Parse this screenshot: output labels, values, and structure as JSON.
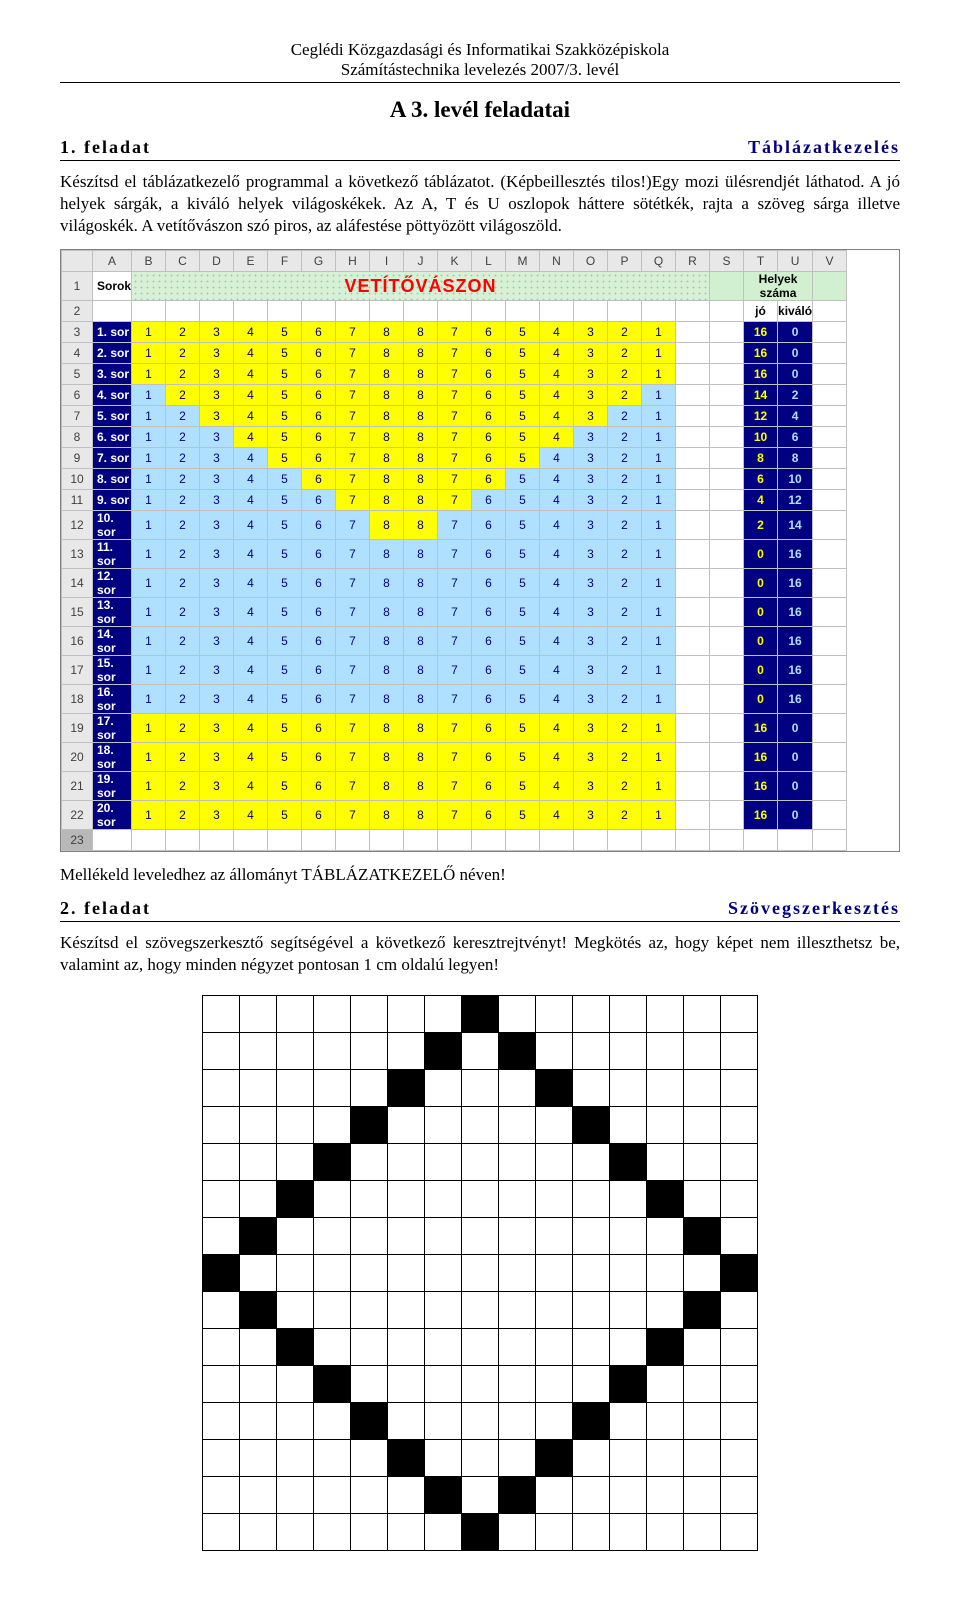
{
  "header": {
    "l1": "Ceglédi Közgazdasági és Informatikai Szakközépiskola",
    "l2": "Számítástechnika levelezés 2007/3. levél"
  },
  "title": "A 3. levél feladatai",
  "task1": {
    "left": "1. feladat",
    "right": "Táblázatkezelés"
  },
  "para1": "Készítsd el táblázatkezelő programmal a következő táblázatot. (Képbeillesztés tilos!)Egy mozi ülésrendjét láthatod. A jó helyek sárgák, a kiváló helyek világoskékek. Az A, T és U oszlopok háttere sötétkék, rajta a szöveg sárga illetve világoskék. A vetítővászon szó piros, az aláfestése pöttyözött világoszöld.",
  "sheet": {
    "cols": [
      "A",
      "B",
      "C",
      "D",
      "E",
      "F",
      "G",
      "H",
      "I",
      "J",
      "K",
      "L",
      "M",
      "N",
      "O",
      "P",
      "Q",
      "R",
      "S",
      "T",
      "U",
      "V"
    ],
    "row1": {
      "a": "Sorok",
      "banner": "VETÍTŐVÁSZON",
      "t": "Helyek száma"
    },
    "row2": {
      "t": "jó",
      "u": "kiváló"
    },
    "seq": [
      "1",
      "2",
      "3",
      "4",
      "5",
      "6",
      "7",
      "8",
      "8",
      "7",
      "6",
      "5",
      "4",
      "3",
      "2",
      "1"
    ],
    "rows": [
      {
        "n": 3,
        "lab": "1. sor",
        "blue": 16,
        "jo": "16",
        "ki": "0"
      },
      {
        "n": 4,
        "lab": "2. sor",
        "blue": 16,
        "jo": "16",
        "ki": "0"
      },
      {
        "n": 5,
        "lab": "3. sor",
        "blue": 16,
        "jo": "16",
        "ki": "0"
      },
      {
        "n": 6,
        "lab": "4. sor",
        "blue": 14,
        "jo": "14",
        "ki": "2"
      },
      {
        "n": 7,
        "lab": "5. sor",
        "blue": 12,
        "jo": "12",
        "ki": "4"
      },
      {
        "n": 8,
        "lab": "6. sor",
        "blue": 10,
        "jo": "10",
        "ki": "6"
      },
      {
        "n": 9,
        "lab": "7. sor",
        "blue": 8,
        "jo": "8",
        "ki": "8"
      },
      {
        "n": 10,
        "lab": "8. sor",
        "blue": 6,
        "jo": "6",
        "ki": "10"
      },
      {
        "n": 11,
        "lab": "9. sor",
        "blue": 4,
        "jo": "4",
        "ki": "12"
      },
      {
        "n": 12,
        "lab": "10. sor",
        "blue": 2,
        "jo": "2",
        "ki": "14"
      },
      {
        "n": 13,
        "lab": "11. sor",
        "blue": 0,
        "jo": "0",
        "ki": "16"
      },
      {
        "n": 14,
        "lab": "12. sor",
        "blue": 0,
        "jo": "0",
        "ki": "16"
      },
      {
        "n": 15,
        "lab": "13. sor",
        "blue": 0,
        "jo": "0",
        "ki": "16"
      },
      {
        "n": 16,
        "lab": "14. sor",
        "blue": 0,
        "jo": "0",
        "ki": "16"
      },
      {
        "n": 17,
        "lab": "15. sor",
        "blue": 0,
        "jo": "0",
        "ki": "16"
      },
      {
        "n": 18,
        "lab": "16. sor",
        "blue": 0,
        "jo": "0",
        "ki": "16"
      },
      {
        "n": 19,
        "lab": "17. sor",
        "blue": 16,
        "jo": "16",
        "ki": "0"
      },
      {
        "n": 20,
        "lab": "18. sor",
        "blue": 16,
        "jo": "16",
        "ki": "0"
      },
      {
        "n": 21,
        "lab": "19. sor",
        "blue": 16,
        "jo": "16",
        "ki": "0"
      },
      {
        "n": 22,
        "lab": "20. sor",
        "blue": 16,
        "jo": "16",
        "ki": "0"
      }
    ],
    "colors": {
      "navy": "#000080",
      "yellow": "#ffff00",
      "lightblue": "#b0e0ff",
      "dotbg": "#d0f0d0",
      "red": "#ff0000"
    }
  },
  "attach": "Mellékeld leveledhez az állományt TÁBLÁZATKEZELŐ néven!",
  "task2": {
    "left": "2. feladat",
    "right": "Szövegszerkesztés"
  },
  "para2": "Készítsd el szövegszerkesztő segítségével a következő keresztrejtvényt! Megkötés az, hogy képet nem illeszthetsz be, valamint az, hogy minden négyzet pontosan 1 cm oldalú legyen!",
  "crossword": {
    "size": 15,
    "black": [
      [
        0,
        7
      ],
      [
        1,
        6
      ],
      [
        1,
        8
      ],
      [
        2,
        5
      ],
      [
        2,
        9
      ],
      [
        3,
        4
      ],
      [
        3,
        10
      ],
      [
        4,
        3
      ],
      [
        4,
        11
      ],
      [
        5,
        2
      ],
      [
        5,
        12
      ],
      [
        6,
        1
      ],
      [
        6,
        13
      ],
      [
        7,
        0
      ],
      [
        7,
        14
      ],
      [
        8,
        1
      ],
      [
        8,
        13
      ],
      [
        9,
        2
      ],
      [
        9,
        12
      ],
      [
        10,
        3
      ],
      [
        10,
        11
      ],
      [
        11,
        4
      ],
      [
        11,
        10
      ],
      [
        12,
        5
      ],
      [
        12,
        9
      ],
      [
        13,
        6
      ],
      [
        13,
        8
      ],
      [
        14,
        7
      ]
    ]
  }
}
